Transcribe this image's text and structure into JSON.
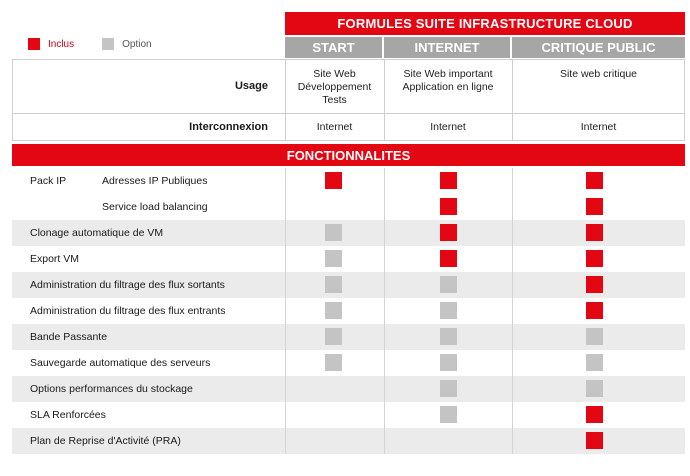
{
  "legend": {
    "included_label": "Inclus",
    "option_label": "Option",
    "included_color": "#e30613",
    "option_color": "#c4c4c4"
  },
  "header": {
    "title": "FORMULES SUITE INFRASTRUCTURE CLOUD",
    "columns": [
      "START",
      "INTERNET",
      "CRITIQUE PUBLIC"
    ]
  },
  "usage": {
    "label": "Usage",
    "values": [
      [
        "Site Web",
        "Développement",
        "Tests"
      ],
      [
        "Site Web important",
        "Application en ligne"
      ],
      [
        "Site web critique"
      ]
    ]
  },
  "interconnexion": {
    "label": "Interconnexion",
    "values": [
      "Internet",
      "Internet",
      "Internet"
    ]
  },
  "section_title": "FONCTIONNALITES",
  "features": [
    {
      "group": "Pack IP",
      "label": "Adresses IP Publiques",
      "cells": [
        "inclus",
        "inclus",
        "inclus"
      ]
    },
    {
      "group": "",
      "label": "Service load balancing",
      "cells": [
        "",
        "inclus",
        "inclus"
      ]
    },
    {
      "group": "",
      "label": "Clonage automatique de VM",
      "cells": [
        "option",
        "inclus",
        "inclus"
      ]
    },
    {
      "group": "",
      "label": "Export VM",
      "cells": [
        "option",
        "inclus",
        "inclus"
      ]
    },
    {
      "group": "",
      "label": "Administration du filtrage des flux sortants",
      "cells": [
        "option",
        "option",
        "inclus"
      ]
    },
    {
      "group": "",
      "label": "Administration du filtrage des flux entrants",
      "cells": [
        "option",
        "option",
        "inclus"
      ]
    },
    {
      "group": "",
      "label": "Bande Passante",
      "cells": [
        "option",
        "option",
        "option"
      ]
    },
    {
      "group": "",
      "label": "Sauvegarde automatique des serveurs",
      "cells": [
        "option",
        "option",
        "option"
      ]
    },
    {
      "group": "",
      "label": "Options performances du stockage",
      "cells": [
        "",
        "option",
        "option"
      ]
    },
    {
      "group": "",
      "label": "SLA Renforcées",
      "cells": [
        "",
        "option",
        "inclus"
      ]
    },
    {
      "group": "",
      "label": "Plan de Reprise d'Activité (PRA)",
      "cells": [
        "",
        "",
        "inclus"
      ]
    }
  ]
}
